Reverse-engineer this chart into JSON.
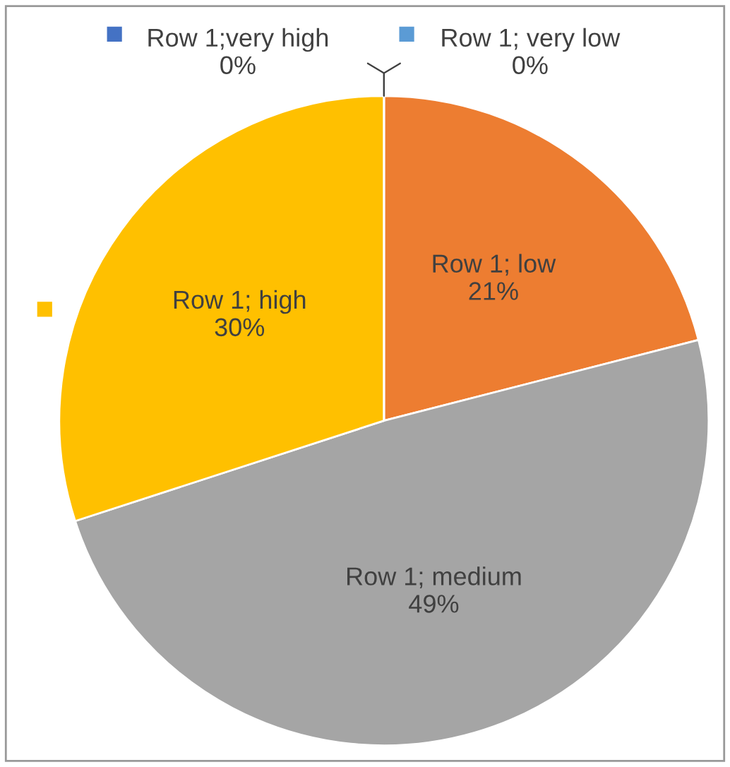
{
  "chart_data": {
    "type": "pie",
    "categories": [
      "Row 1; very low",
      "Row 1; low",
      "Row 1; medium",
      "Row 1; high",
      "Row 1;very high"
    ],
    "values": [
      0,
      21,
      49,
      30,
      0
    ],
    "value_labels": [
      "0%",
      "21%",
      "49%",
      "30%",
      "0%"
    ],
    "colors": [
      "#5b9bd5",
      "#ed7d31",
      "#a5a5a5",
      "#ffc000",
      "#4472c4"
    ]
  }
}
